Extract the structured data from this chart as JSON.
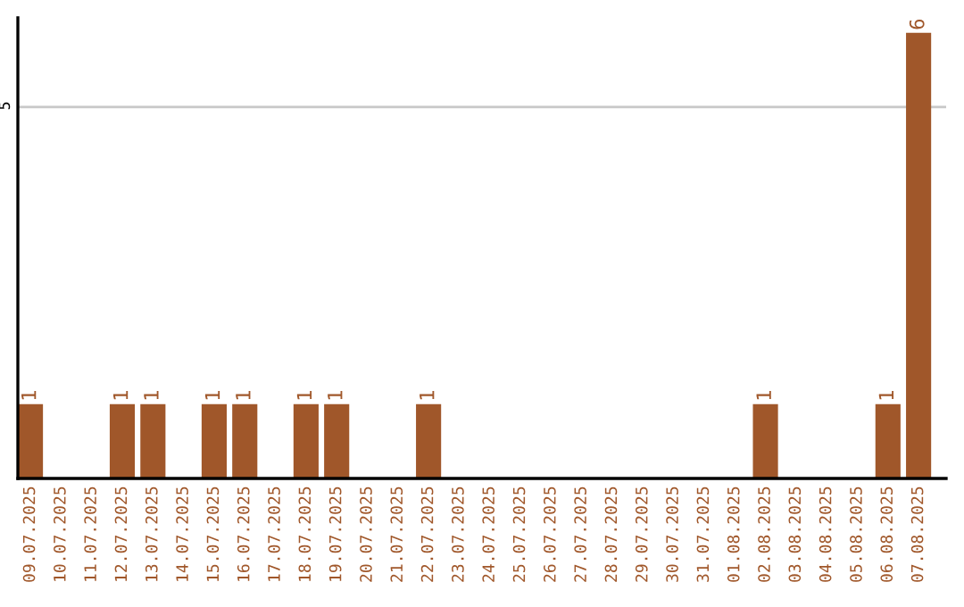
{
  "chart_data": {
    "type": "bar",
    "categories": [
      "09.07.2025",
      "10.07.2025",
      "11.07.2025",
      "12.07.2025",
      "13.07.2025",
      "14.07.2025",
      "15.07.2025",
      "16.07.2025",
      "17.07.2025",
      "18.07.2025",
      "19.07.2025",
      "20.07.2025",
      "21.07.2025",
      "22.07.2025",
      "23.07.2025",
      "24.07.2025",
      "25.07.2025",
      "26.07.2025",
      "27.07.2025",
      "28.07.2025",
      "29.07.2025",
      "30.07.2025",
      "31.07.2025",
      "01.08.2025",
      "02.08.2025",
      "03.08.2025",
      "04.08.2025",
      "05.08.2025",
      "06.08.2025",
      "07.08.2025"
    ],
    "values": [
      1,
      0,
      0,
      1,
      1,
      0,
      1,
      1,
      0,
      1,
      1,
      0,
      0,
      1,
      0,
      0,
      0,
      0,
      0,
      0,
      0,
      0,
      0,
      0,
      1,
      0,
      0,
      0,
      1,
      6
    ],
    "value_labels": [
      "1",
      null,
      null,
      "1",
      "1",
      null,
      "1",
      "1",
      null,
      "1",
      "1",
      null,
      null,
      "1",
      null,
      null,
      null,
      null,
      null,
      null,
      null,
      null,
      null,
      null,
      "1",
      null,
      null,
      null,
      "1",
      "6"
    ],
    "color": "#a0572a",
    "ylim": [
      0,
      6.2
    ],
    "yticks": [
      5
    ],
    "grid": "y",
    "legend": false
  }
}
